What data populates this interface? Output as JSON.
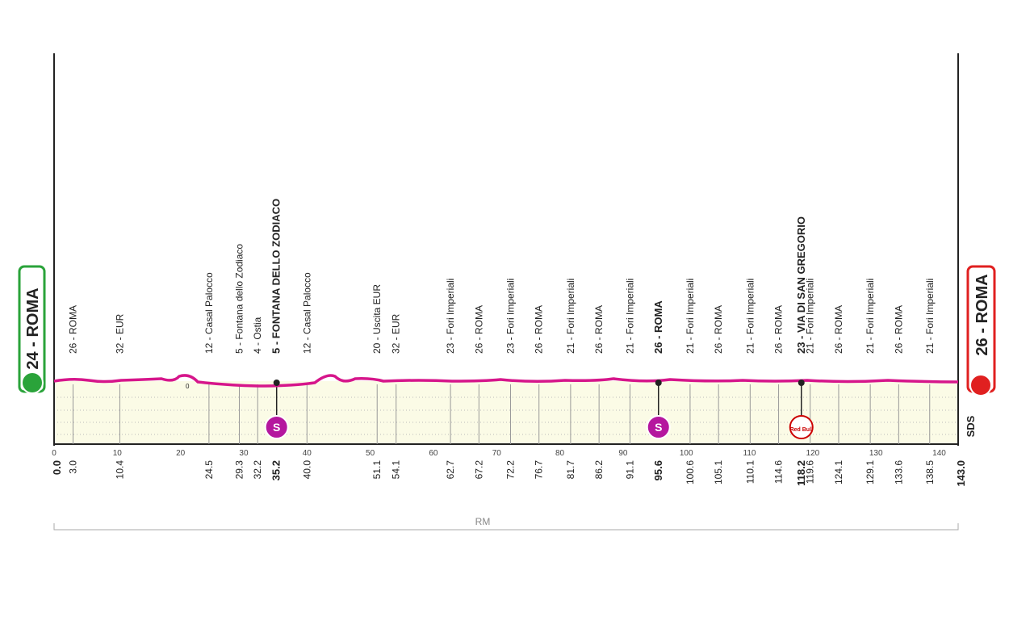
{
  "stage": {
    "start": {
      "label": "24 - ROMA",
      "km": "0.0"
    },
    "finish": {
      "label": "26 - ROMA",
      "km": "143.0"
    },
    "distance_ticks": [
      0,
      10,
      20,
      30,
      40,
      50,
      60,
      70,
      80,
      90,
      100,
      110,
      120,
      130,
      140
    ],
    "waypoints": [
      {
        "km": "3.0",
        "label": "26 - ROMA"
      },
      {
        "km": "10.4",
        "label": "32 - EUR"
      },
      {
        "km": "24.5",
        "label": "12 - Casal Palocco"
      },
      {
        "km": "29.3",
        "label": "5 - Fontana dello Zodiaco"
      },
      {
        "km": "32.2",
        "label": "4 - Ostia"
      },
      {
        "km": "35.2",
        "label": "5 - FONTANA DELLO ZODIACO",
        "bold": true,
        "marker": "S"
      },
      {
        "km": "40.0",
        "label": "12 - Casal Palocco"
      },
      {
        "km": "51.1",
        "label": "20 - Uscita EUR"
      },
      {
        "km": "54.1",
        "label": "32 - EUR"
      },
      {
        "km": "62.7",
        "label": "23 - Fori Imperiali"
      },
      {
        "km": "67.2",
        "label": "26 - ROMA"
      },
      {
        "km": "72.2",
        "label": "23 - Fori Imperiali"
      },
      {
        "km": "76.7",
        "label": "26 - ROMA"
      },
      {
        "km": "81.7",
        "label": "21 - Fori Imperiali"
      },
      {
        "km": "86.2",
        "label": "26 - ROMA"
      },
      {
        "km": "91.1",
        "label": "21 - Fori Imperiali"
      },
      {
        "km": "95.6",
        "label": "26 - ROMA",
        "bold": true,
        "marker": "S"
      },
      {
        "km": "100.6",
        "label": "21 - Fori Imperiali"
      },
      {
        "km": "105.1",
        "label": "26 - ROMA"
      },
      {
        "km": "110.1",
        "label": "21 - Fori Imperiali"
      },
      {
        "km": "114.6",
        "label": "26 - ROMA"
      },
      {
        "km": "118.2",
        "label": "23 - VIA DI SAN GREGORIO",
        "bold": true,
        "marker": "Red Bull"
      },
      {
        "km": "119.6",
        "label": "21 - Fori Imperiali"
      },
      {
        "km": "124.1",
        "label": "26 - ROMA"
      },
      {
        "km": "129.1",
        "label": "21 - Fori Imperiali"
      },
      {
        "km": "133.6",
        "label": "26 - ROMA"
      },
      {
        "km": "138.5",
        "label": "21 - Fori Imperiali"
      }
    ],
    "zero_label": "0",
    "sponsor": "SDS",
    "footer": "RM"
  }
}
